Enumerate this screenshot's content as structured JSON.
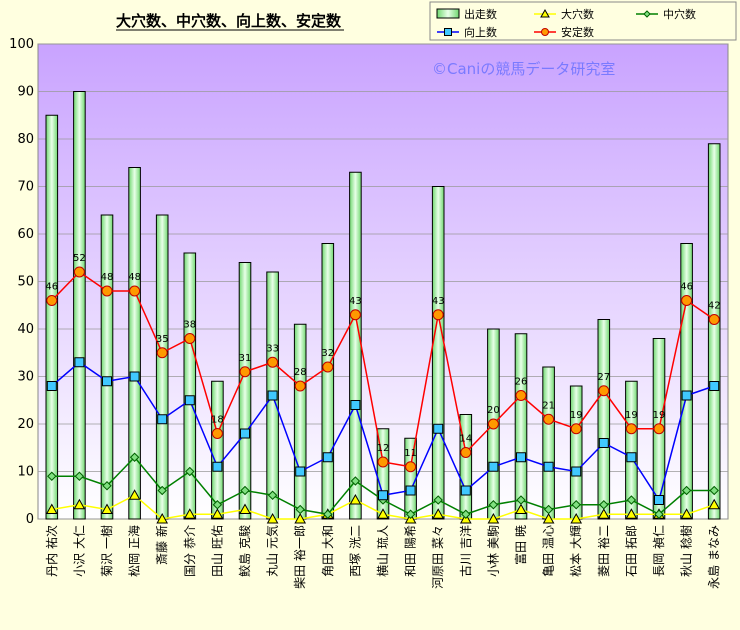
{
  "chart_data": {
    "type": "bar",
    "title": "大穴数、中穴数、向上数、安定数",
    "watermark": "©Caniの競馬データ研究室",
    "ylim": [
      0,
      100
    ],
    "yticks": [
      0,
      10,
      20,
      30,
      40,
      50,
      60,
      70,
      80,
      90,
      100
    ],
    "grid": true,
    "legend_position": "top-right",
    "categories": [
      "丹内 祐次",
      "小沢 大仁",
      "菊沢 一樹",
      "松岡 正海",
      "斎藤 新",
      "国分 恭介",
      "田山 旺佑",
      "鮫島 克駿",
      "丸山 元気",
      "柴田 裕一郎",
      "角田 大和",
      "西塚 洸二",
      "横山 琉人",
      "和田 陽希",
      "河原田 菜々",
      "古川 吉洋",
      "小林 美駒",
      "富田 暁",
      "亀田 温心",
      "松本 大輝",
      "菱田 裕二",
      "石田 拓郎",
      "長岡 禎仁",
      "秋山 稔樹",
      "永島 まなみ"
    ],
    "series": [
      {
        "name": "出走数",
        "type": "bar",
        "color": "#90f090",
        "values": [
          85,
          90,
          64,
          74,
          64,
          56,
          29,
          54,
          52,
          41,
          58,
          73,
          19,
          17,
          70,
          22,
          40,
          39,
          32,
          28,
          42,
          29,
          38,
          58,
          79
        ]
      },
      {
        "name": "大穴数",
        "type": "line",
        "color": "#ffff00",
        "values": [
          2,
          3,
          2,
          5,
          0,
          1,
          1,
          2,
          0,
          0,
          1,
          4,
          1,
          0,
          1,
          0,
          0,
          2,
          0,
          0,
          1,
          1,
          1,
          1,
          3
        ]
      },
      {
        "name": "中穴数",
        "type": "line",
        "color": "#008000",
        "values": [
          9,
          9,
          7,
          13,
          6,
          10,
          3,
          6,
          5,
          2,
          1,
          8,
          4,
          1,
          4,
          1,
          3,
          4,
          2,
          3,
          3,
          4,
          1,
          6,
          6
        ]
      },
      {
        "name": "向上数",
        "type": "line",
        "color": "#0000ff",
        "values": [
          28,
          33,
          29,
          30,
          21,
          25,
          11,
          18,
          26,
          10,
          13,
          24,
          5,
          6,
          19,
          6,
          11,
          13,
          11,
          10,
          16,
          13,
          4,
          26,
          28
        ]
      },
      {
        "name": "安定数",
        "type": "line",
        "color": "#ff0000",
        "values": [
          46,
          52,
          48,
          48,
          35,
          38,
          18,
          31,
          33,
          28,
          32,
          43,
          12,
          11,
          43,
          14,
          20,
          26,
          21,
          19,
          27,
          19,
          19,
          46,
          42
        ]
      }
    ]
  }
}
